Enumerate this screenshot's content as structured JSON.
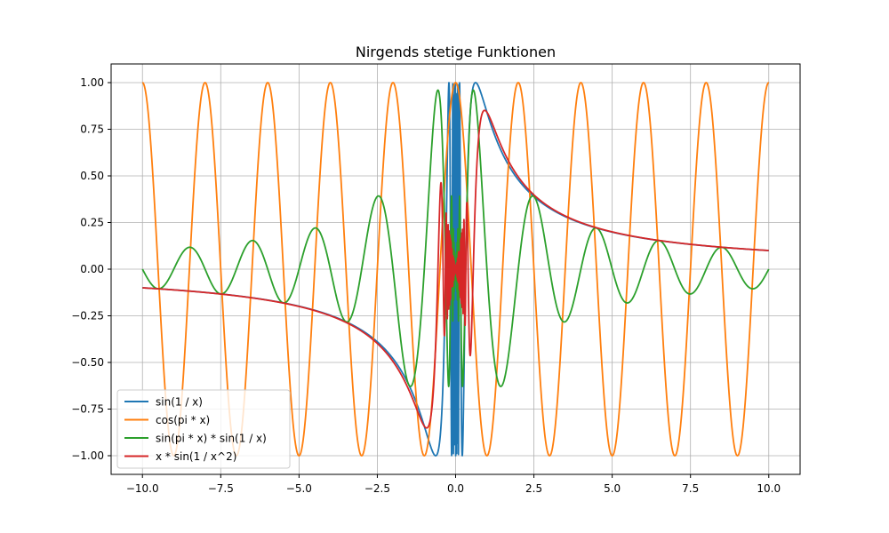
{
  "chart_data": {
    "type": "line",
    "title": "Nirgends stetige Funktionen",
    "xlabel": "",
    "ylabel": "",
    "xlim": [
      -11.0,
      11.0
    ],
    "ylim": [
      -1.1,
      1.1
    ],
    "x_ticks": [
      "-10.0",
      "-7.5",
      "-5.0",
      "-2.5",
      "0.0",
      "2.5",
      "5.0",
      "7.5",
      "10.0"
    ],
    "y_ticks": [
      "-1.00",
      "-0.75",
      "-0.50",
      "-0.25",
      "0.00",
      "0.25",
      "0.50",
      "0.75",
      "1.00"
    ],
    "grid": true,
    "legend_position": "lower-left",
    "x_domain": [
      -10,
      10
    ],
    "series": [
      {
        "name": "sin(1 / x)",
        "function": "sin(1/x)",
        "color": "#1f77b4"
      },
      {
        "name": "cos(pi * x)",
        "function": "cos(pi*x)",
        "color": "#ff7f0e"
      },
      {
        "name": "sin(pi * x) * sin(1 / x)",
        "function": "sin(pi*x)*sin(1/x)",
        "color": "#2ca02c"
      },
      {
        "name": "x * sin(1 / x^2)",
        "function": "x*sin(1/x^2)",
        "color": "#d62728"
      }
    ]
  }
}
